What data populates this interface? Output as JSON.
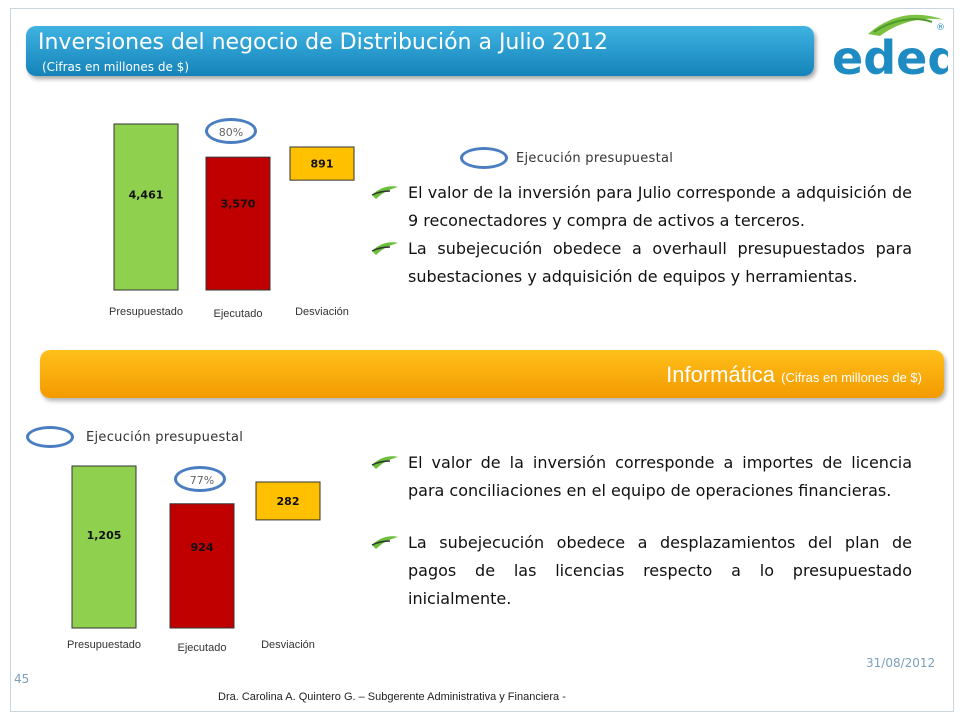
{
  "header": {
    "title": "Inversiones del negocio de Distribución a Julio 2012",
    "subtitle": "(Cifras en millones de $)"
  },
  "logo": {
    "text": "edeq",
    "registered": "®"
  },
  "top_legend": "Ejecución presupuestal",
  "top_bullets": [
    "El valor de la inversión para Julio corresponde a adquisición de 9 reconectadores y compra de activos a terceros.",
    "La subejecución obedece a overhaull presupuestados para subestaciones y adquisición de equipos y herramientas."
  ],
  "section": {
    "title": "Informática",
    "note": "(Cifras en millones de $)"
  },
  "bottom_legend": "Ejecución presupuestal",
  "bottom_bullets": [
    "El valor de la inversión corresponde a importes de licencia para conciliaciones en el equipo de operaciones financieras.",
    "La subejecución obedece a desplazamientos del plan de pagos de las licencias respecto a lo presupuestado inicialmente."
  ],
  "footer": {
    "date": "31/08/2012",
    "page": "45",
    "credit": "Dra. Carolina A. Quintero G. – Subgerente Administrativa y Financiera -"
  },
  "colors": {
    "presupuestado": "#8fd14f",
    "ejecutado": "#c00000",
    "desviacion": "#ffc000",
    "ellipse": "#4a7ec1"
  },
  "chart_data": [
    {
      "type": "bar",
      "categories": [
        "Presupuestado",
        "Ejecutado",
        "Desviación"
      ],
      "values": [
        4461,
        3570,
        891
      ],
      "value_labels": [
        "4,461",
        "3,570",
        "891"
      ],
      "percent_label": "80%"
    },
    {
      "type": "bar",
      "categories": [
        "Presupuestado",
        "Ejecutado",
        "Desviación"
      ],
      "values": [
        1205,
        924,
        282
      ],
      "value_labels": [
        "1,205",
        "924",
        "282"
      ],
      "percent_label": "77%"
    }
  ]
}
